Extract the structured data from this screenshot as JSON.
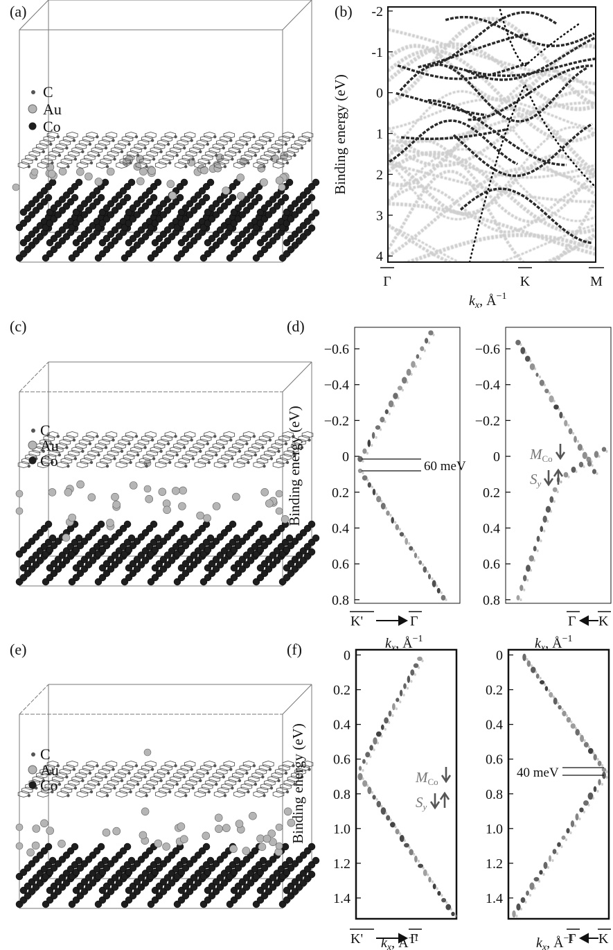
{
  "panels": {
    "a": {
      "label": "(a)",
      "legend": [
        {
          "symbol": "carbon",
          "text": "C"
        },
        {
          "symbol": "gold",
          "text": "Au"
        },
        {
          "symbol": "cobalt",
          "text": "Co"
        }
      ]
    },
    "b": {
      "label": "(b)",
      "ylabel": "Binding energy (eV)",
      "yticks": [
        "-2",
        "-1",
        "0",
        "1",
        "2",
        "3",
        "4"
      ],
      "yrange": [
        -2.1,
        4.15
      ],
      "xticks": [
        "Γ",
        "K",
        "M"
      ],
      "xlabel_k": "k",
      "xlabel_sub": "x",
      "xlabel_unit": ", Å",
      "xlabel_sup": "−1"
    },
    "c": {
      "label": "(c)",
      "legend": [
        {
          "symbol": "carbon",
          "text": "C"
        },
        {
          "symbol": "gold",
          "text": "Au"
        },
        {
          "symbol": "cobalt",
          "text": "Co"
        }
      ]
    },
    "d": {
      "label": "(d)",
      "ylabel": "Binding energy (eV)",
      "yticks": [
        "−0.6",
        "−0.4",
        "−0.2",
        "0",
        "0.2",
        "0.4",
        "0.6",
        "0.8"
      ],
      "yvalues": [
        -0.6,
        -0.4,
        -0.2,
        0,
        0.2,
        0.4,
        0.6,
        0.8
      ],
      "yrange": [
        -0.72,
        0.82
      ],
      "gap_annotation": "60 meV",
      "left_path": {
        "from": "K'",
        "to": "Γ"
      },
      "right_path": {
        "from": "Γ",
        "to": "K"
      },
      "magnetization_M": "M",
      "magnetization_sub": "Co",
      "spin_S": "S",
      "spin_sub": "y",
      "xlabel_k": "k",
      "xlabel_sub": "x",
      "xlabel_unit": ", Å",
      "xlabel_sup": "−1"
    },
    "e": {
      "label": "(e)",
      "legend": [
        {
          "symbol": "carbon",
          "text": "C"
        },
        {
          "symbol": "gold",
          "text": "Au"
        },
        {
          "symbol": "cobalt",
          "text": "Co"
        }
      ]
    },
    "f": {
      "label": "(f)",
      "ylabel": "Binding energy (eV)",
      "yticks": [
        "0",
        "0.2",
        "0.4",
        "0.6",
        "0.8",
        "1.0",
        "1.2",
        "1.4"
      ],
      "yvalues": [
        0,
        0.2,
        0.4,
        0.6,
        0.8,
        1.0,
        1.2,
        1.4
      ],
      "yrange": [
        -0.03,
        1.52
      ],
      "gap_annotation": "40 meV",
      "left_path": {
        "from": "K'",
        "to": "Γ"
      },
      "right_path": {
        "from": "Γ",
        "to": "K"
      },
      "magnetization_M": "M",
      "magnetization_sub": "Co",
      "spin_S": "S",
      "spin_sub": "y",
      "xlabel_k": "k",
      "xlabel_sub": "x",
      "xlabel_unit": ", Å",
      "xlabel_sup": "−1"
    }
  },
  "colors": {
    "carbon": "#555555",
    "gold": "#b5b5b5",
    "cobalt": "#1e1e1e",
    "ink": "#111111"
  }
}
